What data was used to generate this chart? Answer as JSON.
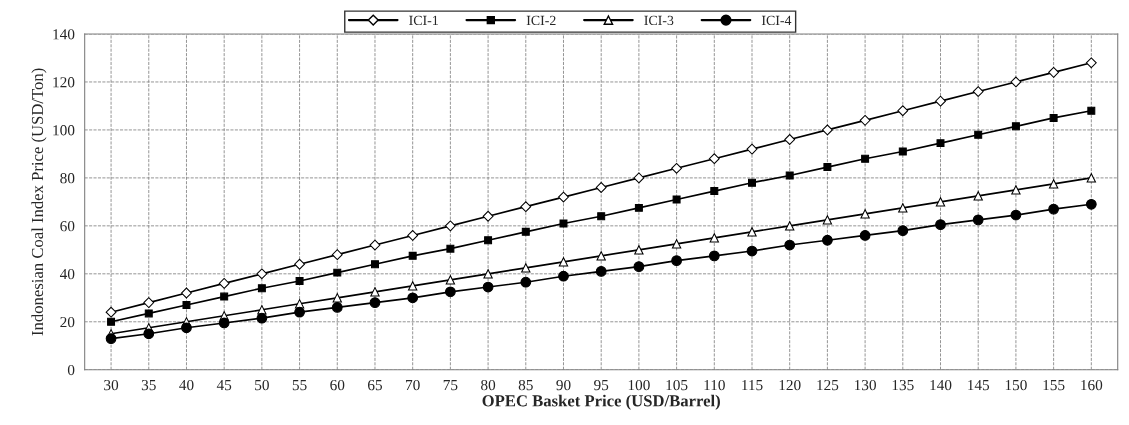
{
  "chart_data": {
    "type": "line",
    "xlabel": "OPEC Basket Price (USD/Barrel)",
    "ylabel": "Indonesian Coal Index Price (USD/Ton)",
    "categories": [
      "30",
      "35",
      "40",
      "45",
      "50",
      "55",
      "60",
      "65",
      "70",
      "75",
      "80",
      "85",
      "90",
      "95",
      "100",
      "105",
      "110",
      "115",
      "120",
      "125",
      "130",
      "135",
      "140",
      "145",
      "150",
      "155",
      "160"
    ],
    "series": [
      {
        "name": "ICI-1",
        "color": "#000000",
        "marker": "diamond",
        "values": [
          24,
          28,
          32,
          36,
          40,
          44,
          48,
          52,
          56,
          60,
          64,
          68,
          72,
          76,
          80,
          84,
          88,
          92,
          96,
          100,
          104,
          108,
          112,
          116,
          120,
          124,
          128
        ]
      },
      {
        "name": "ICI-2",
        "color": "#000000",
        "marker": "square",
        "values": [
          20,
          23.5,
          27,
          30.5,
          34,
          37,
          40.5,
          44,
          47.5,
          50.5,
          54,
          57.5,
          61,
          64,
          67.5,
          71,
          74.5,
          78,
          81,
          84.5,
          88,
          91,
          94.5,
          98,
          101.5,
          105,
          108
        ]
      },
      {
        "name": "ICI-3",
        "color": "#000000",
        "marker": "triangle",
        "values": [
          15,
          17.5,
          20,
          22.5,
          25,
          27.5,
          30,
          32.5,
          35,
          37.5,
          40,
          42.5,
          45,
          47.5,
          50,
          52.5,
          55,
          57.5,
          60,
          62.5,
          65,
          67.5,
          70,
          72.5,
          75,
          77.5,
          80
        ]
      },
      {
        "name": "ICI-4",
        "color": "#000000",
        "marker": "circle",
        "values": [
          13,
          15,
          17.5,
          19.5,
          21.5,
          24,
          26,
          28,
          30,
          32.5,
          34.5,
          36.5,
          39,
          41,
          43,
          45.5,
          47.5,
          49.5,
          52,
          54,
          56,
          58,
          60.5,
          62.5,
          64.5,
          67,
          69
        ]
      }
    ],
    "ylim": [
      0,
      140
    ],
    "yticks": [
      0,
      20,
      40,
      60,
      80,
      100,
      120,
      140
    ],
    "grid": true,
    "legend": "top",
    "line_style": "solid"
  }
}
